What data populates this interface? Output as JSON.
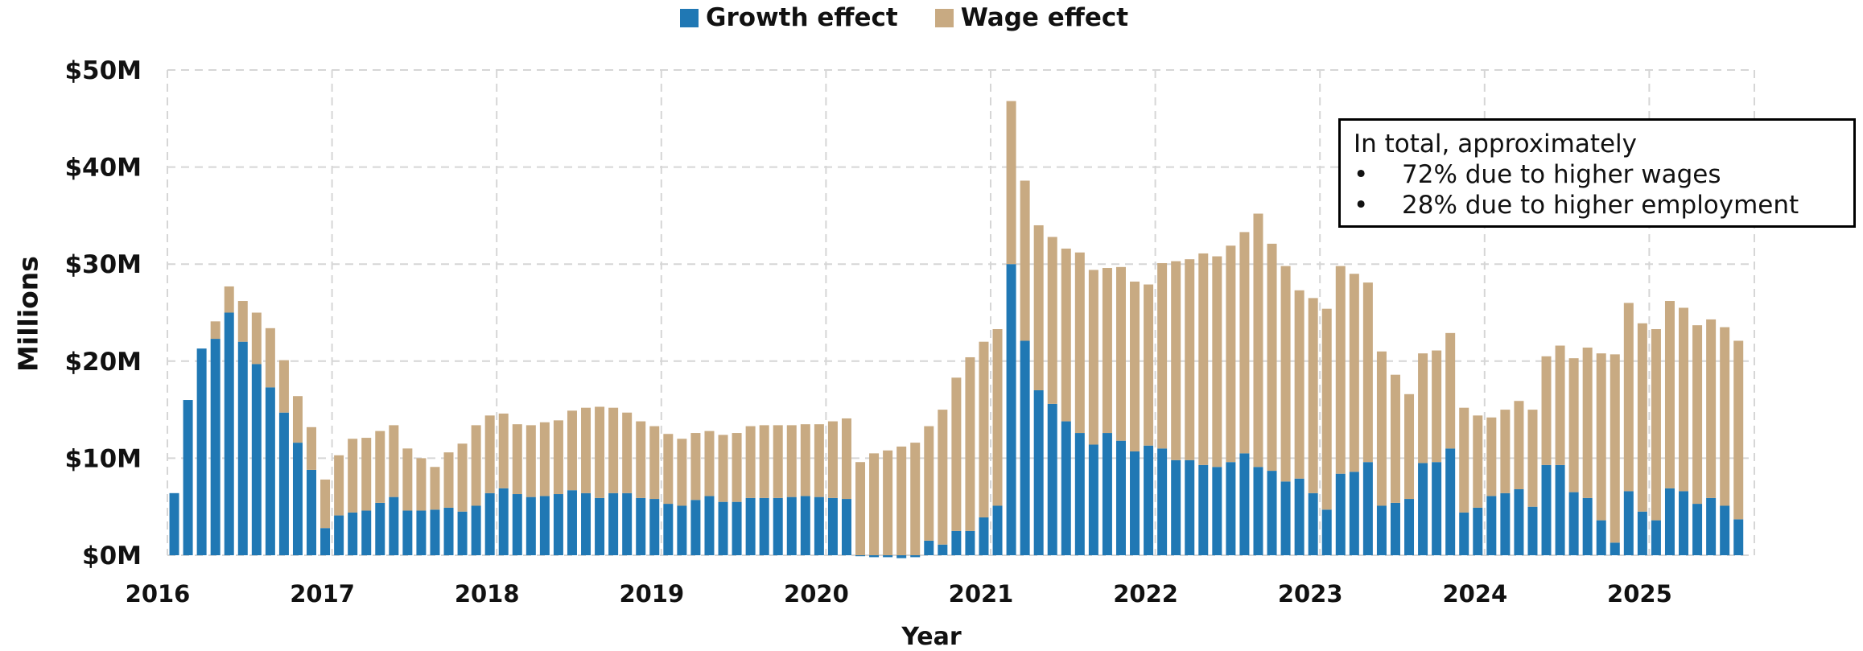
{
  "chart_data": {
    "type": "bar",
    "stacked": true,
    "xlabel": "Year",
    "ylabel": "Millions",
    "ylim": [
      0,
      50
    ],
    "yticks": [
      "$0M",
      "$10M",
      "$20M",
      "$30M",
      "$40M",
      "$50M"
    ],
    "xticks": [
      "2016",
      "2017",
      "2018",
      "2019",
      "2020",
      "2021",
      "2022",
      "2023",
      "2024",
      "2025"
    ],
    "x_start": "2016-01",
    "grid": "dashed",
    "legend_position": "top-center",
    "colors": {
      "growth": "#2078b4",
      "wage": "#c8aa82"
    },
    "series": [
      {
        "name": "Growth effect",
        "values": [
          6.4,
          16.0,
          21.3,
          22.3,
          25.0,
          22.0,
          19.7,
          17.3,
          14.7,
          11.6,
          8.8,
          2.8,
          4.1,
          4.4,
          4.6,
          5.4,
          6.0,
          4.6,
          4.6,
          4.7,
          4.9,
          4.5,
          5.1,
          6.4,
          6.9,
          6.3,
          6.0,
          6.1,
          6.3,
          6.7,
          6.4,
          5.9,
          6.4,
          6.4,
          5.9,
          5.8,
          5.3,
          5.1,
          5.7,
          6.1,
          5.5,
          5.5,
          5.9,
          5.9,
          5.9,
          6.0,
          6.1,
          6.0,
          5.9,
          5.8,
          -0.1,
          -0.2,
          -0.2,
          -0.3,
          -0.2,
          1.5,
          1.1,
          2.5,
          2.5,
          3.9,
          5.1,
          30.0,
          22.1,
          17.0,
          15.6,
          13.8,
          12.6,
          11.4,
          12.6,
          11.8,
          10.7,
          11.3,
          11.0,
          9.8,
          9.8,
          9.3,
          9.1,
          9.6,
          10.5,
          9.1,
          8.7,
          7.6,
          7.9,
          6.4,
          4.7,
          8.4,
          8.6,
          9.6,
          5.1,
          5.4,
          5.8,
          9.5,
          9.6,
          11.0,
          4.4,
          4.9,
          6.1,
          6.4,
          6.8,
          5.0,
          9.3,
          9.3,
          6.5,
          5.9,
          3.6,
          1.3,
          6.6,
          4.5,
          3.6,
          6.9,
          6.6,
          5.3,
          5.9,
          5.1,
          3.7
        ]
      },
      {
        "name": "Wage effect",
        "values": [
          0.0,
          0.0,
          0.0,
          1.8,
          2.7,
          4.2,
          5.3,
          6.1,
          5.4,
          4.8,
          4.4,
          5.0,
          6.2,
          7.6,
          7.5,
          7.4,
          7.4,
          6.4,
          5.4,
          4.4,
          5.7,
          7.0,
          8.3,
          8.0,
          7.7,
          7.2,
          7.4,
          7.6,
          7.6,
          8.2,
          8.8,
          9.4,
          8.8,
          8.3,
          7.9,
          7.5,
          7.2,
          6.9,
          6.9,
          6.7,
          6.9,
          7.1,
          7.4,
          7.5,
          7.5,
          7.4,
          7.4,
          7.5,
          7.9,
          8.3,
          9.6,
          10.5,
          10.8,
          11.2,
          11.6,
          11.8,
          13.9,
          15.8,
          17.9,
          18.1,
          18.2,
          16.8,
          16.5,
          17.0,
          17.2,
          17.8,
          18.6,
          18.0,
          17.0,
          17.9,
          17.5,
          16.6,
          19.1,
          20.5,
          20.7,
          21.8,
          21.7,
          22.3,
          22.8,
          26.1,
          23.4,
          22.2,
          19.4,
          20.1,
          20.7,
          21.4,
          20.4,
          18.5,
          15.9,
          13.2,
          10.8,
          11.3,
          11.5,
          11.9,
          10.8,
          9.5,
          8.1,
          8.6,
          9.1,
          10.0,
          11.2,
          12.3,
          13.8,
          15.5,
          17.2,
          19.4,
          19.4,
          19.4,
          19.7,
          19.3,
          18.9,
          18.4,
          18.4,
          18.4,
          18.4
        ]
      }
    ]
  },
  "annotation": {
    "title": "In total, approximately",
    "bullet_symbol": "•",
    "items": [
      "72% due to higher wages",
      "28% due to higher employment"
    ]
  }
}
